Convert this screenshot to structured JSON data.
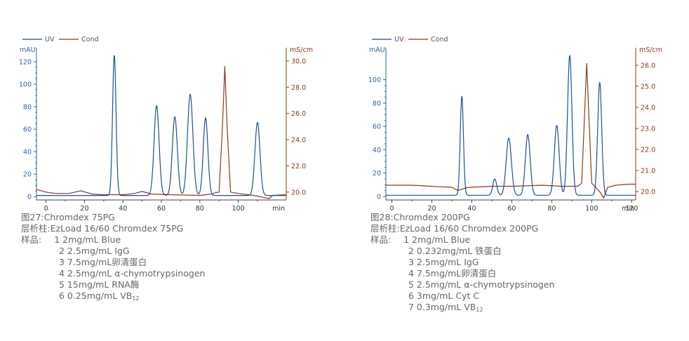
{
  "colors": {
    "uv": "#1f4e9c",
    "cond": "#8a3a1a",
    "uv_axis": "#2f5fa8",
    "cond_axis": "#8a3a1a"
  },
  "chart_data": [
    {
      "type": "line",
      "legend": [
        "UV",
        "Cond"
      ],
      "legend_placement": "top-left",
      "xlabel": "min",
      "ylabel_left": "mAU",
      "ylabel_right": "mS/cm",
      "xlim": [
        -5,
        125
      ],
      "ylim_left": [
        -3,
        130
      ],
      "ylim_right": [
        19.4,
        30.8
      ],
      "x_ticks": [
        0,
        20,
        40,
        60,
        80,
        100
      ],
      "y_ticks_left": [
        0,
        20,
        40,
        60,
        80,
        100,
        120
      ],
      "y_ticks_right": [
        "20.0",
        "22.0",
        "24.0",
        "26.0",
        "28.0",
        "30.0"
      ],
      "grid": false,
      "series": [
        {
          "name": "UV",
          "axis": "left",
          "baseline": 1,
          "peaks": [
            {
              "x": 35.5,
              "height": 125,
              "width": 0.9
            },
            {
              "x": 57.5,
              "height": 80,
              "width": 1.3
            },
            {
              "x": 67,
              "height": 70,
              "width": 1.3
            },
            {
              "x": 75,
              "height": 90,
              "width": 1.4
            },
            {
              "x": 83,
              "height": 69,
              "width": 1.2
            },
            {
              "x": 110,
              "height": 65,
              "width": 1.3
            }
          ]
        },
        {
          "name": "Cond",
          "axis": "right",
          "points": [
            [
              -5,
              20.2
            ],
            [
              0,
              20.0
            ],
            [
              5,
              19.9
            ],
            [
              12,
              19.9
            ],
            [
              18,
              20.1
            ],
            [
              24,
              19.85
            ],
            [
              30,
              19.8
            ],
            [
              40,
              19.8
            ],
            [
              46,
              19.9
            ],
            [
              50,
              20.05
            ],
            [
              55,
              19.85
            ],
            [
              65,
              19.8
            ],
            [
              80,
              19.75
            ],
            [
              86,
              19.85
            ],
            [
              88,
              19.95
            ],
            [
              90,
              20.0
            ],
            [
              91.8,
              25.0
            ],
            [
              93,
              29.6
            ],
            [
              94.2,
              25.0
            ],
            [
              96,
              20.0
            ],
            [
              100,
              19.9
            ],
            [
              105,
              19.8
            ],
            [
              110,
              19.7
            ],
            [
              113,
              19.6
            ],
            [
              116,
              19.5
            ],
            [
              118,
              19.75
            ],
            [
              125,
              19.8
            ]
          ]
        }
      ]
    },
    {
      "type": "line",
      "legend": [
        "UV",
        "Cond"
      ],
      "legend_placement": "top-left",
      "xlabel": "min",
      "ylabel_left": "mAU",
      "ylabel_right": "mS/cm",
      "xlim": [
        -3,
        122
      ],
      "ylim_left": [
        -3,
        125
      ],
      "ylim_right": [
        19.6,
        26.7
      ],
      "x_ticks": [
        0,
        20,
        40,
        60,
        80,
        100,
        120
      ],
      "y_ticks_left": [
        0,
        20,
        40,
        60,
        80,
        100
      ],
      "y_ticks_right": [
        "20.0",
        "21.0",
        "22.0",
        "23.0",
        "24.0",
        "25.0",
        "26.0"
      ],
      "grid": false,
      "series": [
        {
          "name": "UV",
          "axis": "left",
          "baseline": 1,
          "peaks": [
            {
              "x": 35,
              "height": 85,
              "width": 0.8
            },
            {
              "x": 51.5,
              "height": 14,
              "width": 1.0
            },
            {
              "x": 58.5,
              "height": 49,
              "width": 1.3
            },
            {
              "x": 68,
              "height": 52,
              "width": 1.2
            },
            {
              "x": 82.5,
              "height": 60,
              "width": 1.2
            },
            {
              "x": 89,
              "height": 120,
              "width": 1.1
            },
            {
              "x": 104,
              "height": 97,
              "width": 1.0
            }
          ]
        },
        {
          "name": "Cond",
          "axis": "right",
          "points": [
            [
              -3,
              20.3
            ],
            [
              10,
              20.3
            ],
            [
              20,
              20.25
            ],
            [
              30,
              20.2
            ],
            [
              33,
              20.05
            ],
            [
              38,
              20.2
            ],
            [
              50,
              20.25
            ],
            [
              60,
              20.25
            ],
            [
              75,
              20.3
            ],
            [
              85,
              20.25
            ],
            [
              93,
              20.25
            ],
            [
              95,
              20.4
            ],
            [
              97.5,
              26.1
            ],
            [
              100,
              20.4
            ],
            [
              104,
              20.0
            ],
            [
              106,
              19.7
            ],
            [
              108,
              20.2
            ],
            [
              112,
              20.3
            ],
            [
              118,
              20.35
            ],
            [
              122,
              20.35
            ]
          ]
        }
      ]
    }
  ],
  "captions": [
    {
      "title": "图27:Chromdex 75PG",
      "column": "层析柱:EzLoad 16/60 Chromdex 75PG",
      "sample_label": "样品:",
      "items": [
        {
          "text": "1 2mg/mL Blue"
        },
        {
          "text": "2 2.5mg/mL IgG"
        },
        {
          "text": "3 7.5mg/mL卵清蛋白"
        },
        {
          "text": "4 2.5mg/mL α-chymotrypsinogen"
        },
        {
          "text": "5 15mg/mL RNA酶"
        },
        {
          "text": "6  0.25mg/mL VB",
          "sub": "12"
        }
      ]
    },
    {
      "title": "图28:Chromdex 200PG",
      "column": "层析柱:EzLoad 16/60 Chromdex 200PG",
      "sample_label": "样品:",
      "items": [
        {
          "text": "1 2mg/mL Blue"
        },
        {
          "text": "2 0.232mg/mL 铁蛋白"
        },
        {
          "text": "3 2.5mg/mL IgG"
        },
        {
          "text": "4 7.5mg/mL卵清蛋白"
        },
        {
          "text": "5 2.5mg/mL α-chymotrypsinogen"
        },
        {
          "text": "6 3mg/mL Cyt C"
        },
        {
          "text": "7 0.3mg/mL VB",
          "sub": "12"
        }
      ]
    }
  ]
}
